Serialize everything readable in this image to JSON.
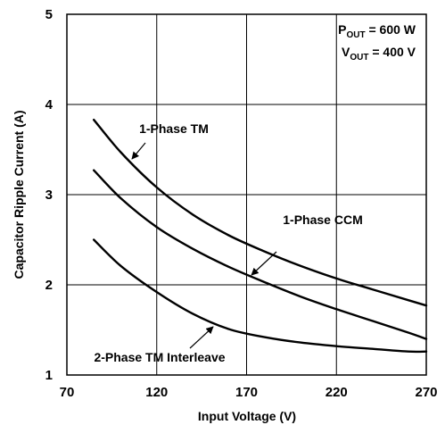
{
  "chart_data": {
    "type": "line",
    "xlabel": "Input Voltage (V)",
    "ylabel": "Capacitor Ripple Current (A)",
    "xlim": [
      70,
      270
    ],
    "ylim": [
      1,
      5
    ],
    "xticks": [
      "70",
      "120",
      "170",
      "220",
      "270"
    ],
    "yticks": [
      "1",
      "2",
      "3",
      "4",
      "5"
    ],
    "grid": true,
    "annotations": {
      "pout": {
        "sym": "P",
        "sub": "OUT",
        "rest": " = 600 W"
      },
      "vout": {
        "sym": "V",
        "sub": "OUT",
        "rest": " = 400 V"
      }
    },
    "series": [
      {
        "name": "1-Phase TM",
        "x": [
          85,
          100,
          120,
          140,
          160,
          180,
          200,
          220,
          240,
          260,
          270
        ],
        "y": [
          3.83,
          3.47,
          3.08,
          2.78,
          2.55,
          2.37,
          2.21,
          2.07,
          1.95,
          1.83,
          1.77
        ]
      },
      {
        "name": "1-Phase CCM",
        "x": [
          85,
          100,
          120,
          140,
          160,
          180,
          200,
          220,
          240,
          260,
          270
        ],
        "y": [
          3.27,
          2.96,
          2.64,
          2.4,
          2.2,
          2.03,
          1.87,
          1.73,
          1.6,
          1.47,
          1.4
        ]
      },
      {
        "name": "2-Phase TM Interleave",
        "x": [
          85,
          100,
          120,
          140,
          160,
          180,
          200,
          220,
          240,
          260,
          270
        ],
        "y": [
          2.5,
          2.21,
          1.92,
          1.68,
          1.51,
          1.42,
          1.36,
          1.32,
          1.29,
          1.26,
          1.26
        ]
      }
    ],
    "labels": {
      "tm": "1-Phase TM",
      "ccm": "1-Phase CCM",
      "interleave": "2-Phase TM Interleave"
    }
  }
}
